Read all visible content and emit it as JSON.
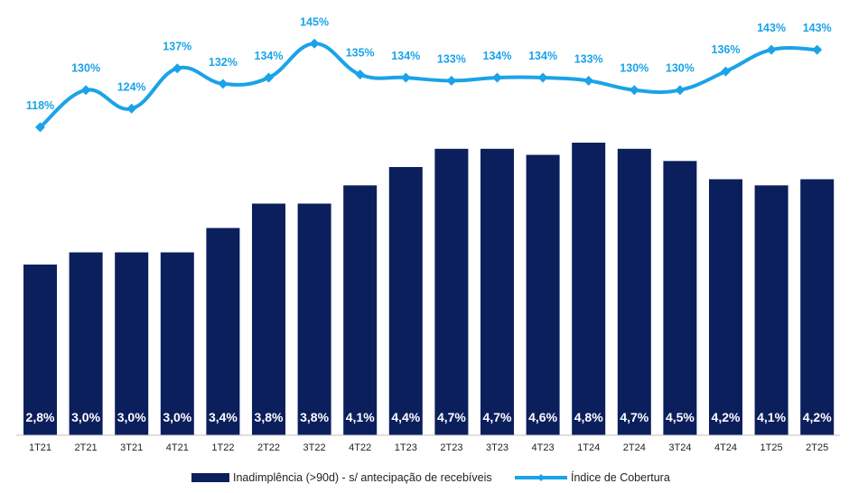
{
  "chart_data": {
    "type": "bar",
    "categories": [
      "1T21",
      "2T21",
      "3T21",
      "4T21",
      "1T22",
      "2T22",
      "3T22",
      "4T22",
      "1T23",
      "2T23",
      "3T23",
      "4T23",
      "1T24",
      "2T24",
      "3T24",
      "4T24",
      "1T25",
      "2T25"
    ],
    "series": [
      {
        "name": "Inadimplência (>90d) - s/ antecipação de recebíveis",
        "type": "bar",
        "color": "#0b1f5c",
        "values": [
          2.8,
          3.0,
          3.0,
          3.0,
          3.4,
          3.8,
          3.8,
          4.1,
          4.4,
          4.7,
          4.7,
          4.6,
          4.8,
          4.7,
          4.5,
          4.2,
          4.1,
          4.2
        ],
        "labels": [
          "2,8%",
          "3,0%",
          "3,0%",
          "3,0%",
          "3,4%",
          "3,8%",
          "3,8%",
          "4,1%",
          "4,4%",
          "4,7%",
          "4,7%",
          "4,6%",
          "4,8%",
          "4,7%",
          "4,5%",
          "4,2%",
          "4,1%",
          "4,2%"
        ]
      },
      {
        "name": "Índice de Cobertura",
        "type": "line",
        "color": "#1aa3e8",
        "values": [
          118,
          130,
          124,
          137,
          132,
          134,
          145,
          135,
          134,
          133,
          134,
          134,
          133,
          130,
          130,
          136,
          143,
          143
        ],
        "labels": [
          "118%",
          "130%",
          "124%",
          "137%",
          "132%",
          "134%",
          "145%",
          "135%",
          "134%",
          "133%",
          "134%",
          "134%",
          "133%",
          "130%",
          "130%",
          "136%",
          "143%",
          "143%"
        ]
      }
    ],
    "legend_position": "bottom",
    "grid": false
  }
}
